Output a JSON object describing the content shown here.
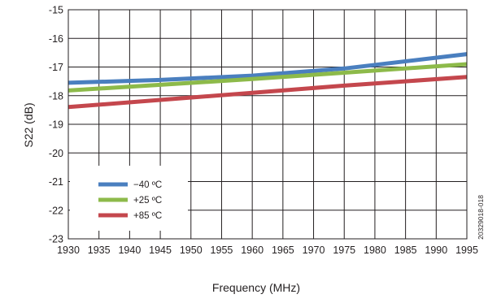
{
  "chart_data": {
    "type": "line",
    "xlabel": "Frequency (MHz)",
    "ylabel": "S22 (dB)",
    "xlim": [
      1930,
      1995
    ],
    "ylim": [
      -23,
      -15
    ],
    "x_ticks": [
      1930,
      1935,
      1940,
      1945,
      1950,
      1955,
      1960,
      1965,
      1970,
      1975,
      1980,
      1985,
      1990,
      1995
    ],
    "y_ticks": [
      -15,
      -16,
      -17,
      -18,
      -19,
      -20,
      -21,
      -22,
      -23
    ],
    "grid": true,
    "legend_position": "bottom-left",
    "series": [
      {
        "name": "−40 ºC",
        "color": "#4a7fbf",
        "x": [
          1930,
          1945,
          1960,
          1975,
          1995
        ],
        "y": [
          -17.55,
          -17.45,
          -17.3,
          -17.05,
          -16.55
        ]
      },
      {
        "name": "+25 ºC",
        "color": "#8dba4a",
        "x": [
          1930,
          1945,
          1960,
          1975,
          1995
        ],
        "y": [
          -17.82,
          -17.62,
          -17.42,
          -17.2,
          -16.9
        ]
      },
      {
        "name": "+85 ºC",
        "color": "#c4474d",
        "x": [
          1930,
          1945,
          1960,
          1975,
          1995
        ],
        "y": [
          -18.4,
          -18.15,
          -17.9,
          -17.65,
          -17.35
        ]
      }
    ]
  },
  "figure_id": "20329018-018"
}
